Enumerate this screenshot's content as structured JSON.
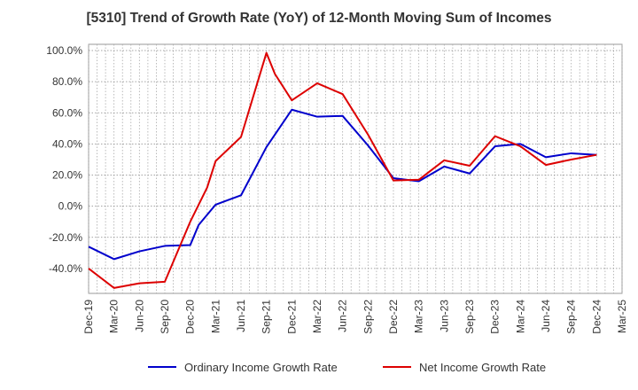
{
  "chart_data": {
    "type": "line",
    "title": "[5310]  Trend of Growth Rate (YoY) of 12-Month Moving Sum of Incomes",
    "xlabel": "",
    "ylabel": "",
    "x_ticks": [
      "Dec-19",
      "Mar-20",
      "Jun-20",
      "Sep-20",
      "Dec-20",
      "Mar-21",
      "Jun-21",
      "Sep-21",
      "Dec-21",
      "Mar-22",
      "Jun-22",
      "Sep-22",
      "Dec-22",
      "Mar-23",
      "Jun-23",
      "Sep-23",
      "Dec-23",
      "Mar-24",
      "Jun-24",
      "Sep-24",
      "Dec-24",
      "Mar-25"
    ],
    "y_ticks": [
      "100.0%",
      "80.0%",
      "60.0%",
      "40.0%",
      "20.0%",
      "0.0%",
      "-20.0%",
      "-40.0%"
    ],
    "y_tick_values": [
      100,
      80,
      60,
      40,
      20,
      0,
      -20,
      -40
    ],
    "ylim": [
      -56,
      104
    ],
    "grid": true,
    "legend_position": "bottom-center",
    "series": [
      {
        "name": "Ordinary Income Growth Rate",
        "color": "#0000cc",
        "values": [
          [
            "Dec-19",
            -26
          ],
          [
            "Mar-20",
            -34
          ],
          [
            "Jun-20",
            -29
          ],
          [
            "Sep-20",
            -25.5
          ],
          [
            "Dec-20",
            -25
          ],
          [
            "Jan-21",
            -12
          ],
          [
            "Mar-21",
            1
          ],
          [
            "Jun-21",
            7
          ],
          [
            "Sep-21",
            38
          ],
          [
            "Dec-21",
            62
          ],
          [
            "Mar-22",
            57.5
          ],
          [
            "Jun-22",
            58
          ],
          [
            "Sep-22",
            39
          ],
          [
            "Dec-22",
            18
          ],
          [
            "Mar-23",
            16
          ],
          [
            "Jun-23",
            25.5
          ],
          [
            "Sep-23",
            21
          ],
          [
            "Dec-23",
            38.5
          ],
          [
            "Mar-24",
            40
          ],
          [
            "Jun-24",
            31.5
          ],
          [
            "Sep-24",
            34
          ],
          [
            "Dec-24",
            33
          ]
        ]
      },
      {
        "name": "Net Income Growth Rate",
        "color": "#dd0000",
        "values": [
          [
            "Dec-19",
            -40
          ],
          [
            "Mar-20",
            -52.5
          ],
          [
            "Jun-20",
            -49.5
          ],
          [
            "Sep-20",
            -48.5
          ],
          [
            "Dec-20",
            -10
          ],
          [
            "Feb-21",
            12
          ],
          [
            "Mar-21",
            29
          ],
          [
            "Jun-21",
            44.5
          ],
          [
            "Sep-21",
            98.5
          ],
          [
            "Oct-21",
            85
          ],
          [
            "Dec-21",
            68
          ],
          [
            "Mar-22",
            79
          ],
          [
            "Jun-22",
            72
          ],
          [
            "Sep-22",
            46
          ],
          [
            "Dec-22",
            16.5
          ],
          [
            "Mar-23",
            17
          ],
          [
            "Jun-23",
            29.5
          ],
          [
            "Sep-23",
            26
          ],
          [
            "Dec-23",
            45
          ],
          [
            "Mar-24",
            38.5
          ],
          [
            "Jun-24",
            26.5
          ],
          [
            "Sep-24",
            30
          ],
          [
            "Dec-24",
            33
          ]
        ]
      }
    ]
  }
}
